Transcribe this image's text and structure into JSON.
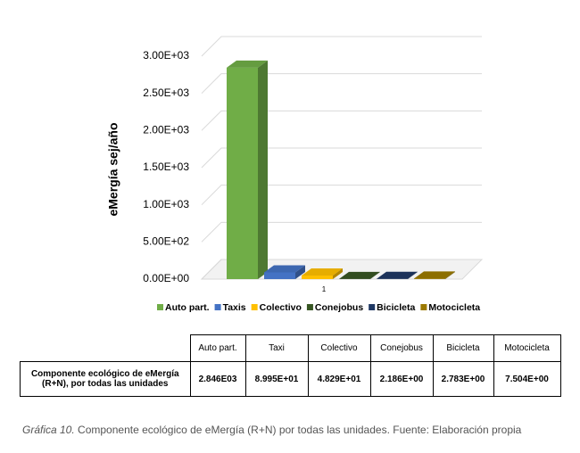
{
  "chart_data": {
    "type": "bar3d",
    "y_label": "eMergía sej/año",
    "categories": [
      "1"
    ],
    "series": [
      {
        "name": "Auto part.",
        "color": "#70ad47",
        "values": [
          2846
        ]
      },
      {
        "name": "Taxis",
        "color": "#4472c4",
        "values": [
          89.95
        ]
      },
      {
        "name": "Colectivo",
        "color": "#ffc000",
        "values": [
          48.29
        ]
      },
      {
        "name": "Conejobus",
        "color": "#375623",
        "values": [
          2.186
        ]
      },
      {
        "name": "Bicicleta",
        "color": "#1f3864",
        "values": [
          2.783
        ]
      },
      {
        "name": "Motocicleta",
        "color": "#9c7a00",
        "values": [
          7.504
        ]
      }
    ],
    "ylim": [
      0,
      3000
    ],
    "yticks": [
      {
        "value": 0,
        "label": "0.00E+00"
      },
      {
        "value": 500,
        "label": "5.00E+02"
      },
      {
        "value": 1000,
        "label": "1.00E+03"
      },
      {
        "value": 1500,
        "label": "1.50E+03"
      },
      {
        "value": 2000,
        "label": "2.00E+03"
      },
      {
        "value": 2500,
        "label": "2.50E+03"
      },
      {
        "value": 3000,
        "label": "3.00E+03"
      }
    ],
    "grid": true,
    "legend": "bottom"
  },
  "table": {
    "header": [
      "Auto part.",
      "Taxi",
      "Colectivo",
      "Conejobus",
      "Bicicleta",
      "Motocicleta"
    ],
    "rows": [
      [
        "Componente ecológico de eMergía (R+N), por todas las unidades",
        "2.846E03",
        "8.995E+01",
        "4.829E+01",
        "2.186E+00",
        "2.783E+00",
        "7.504E+00"
      ]
    ]
  },
  "caption": {
    "label": "Gráfica 10.",
    "text": "Componente ecológico de eMergía (R+N) por todas las unidades. Fuente: Elaboración propia"
  }
}
